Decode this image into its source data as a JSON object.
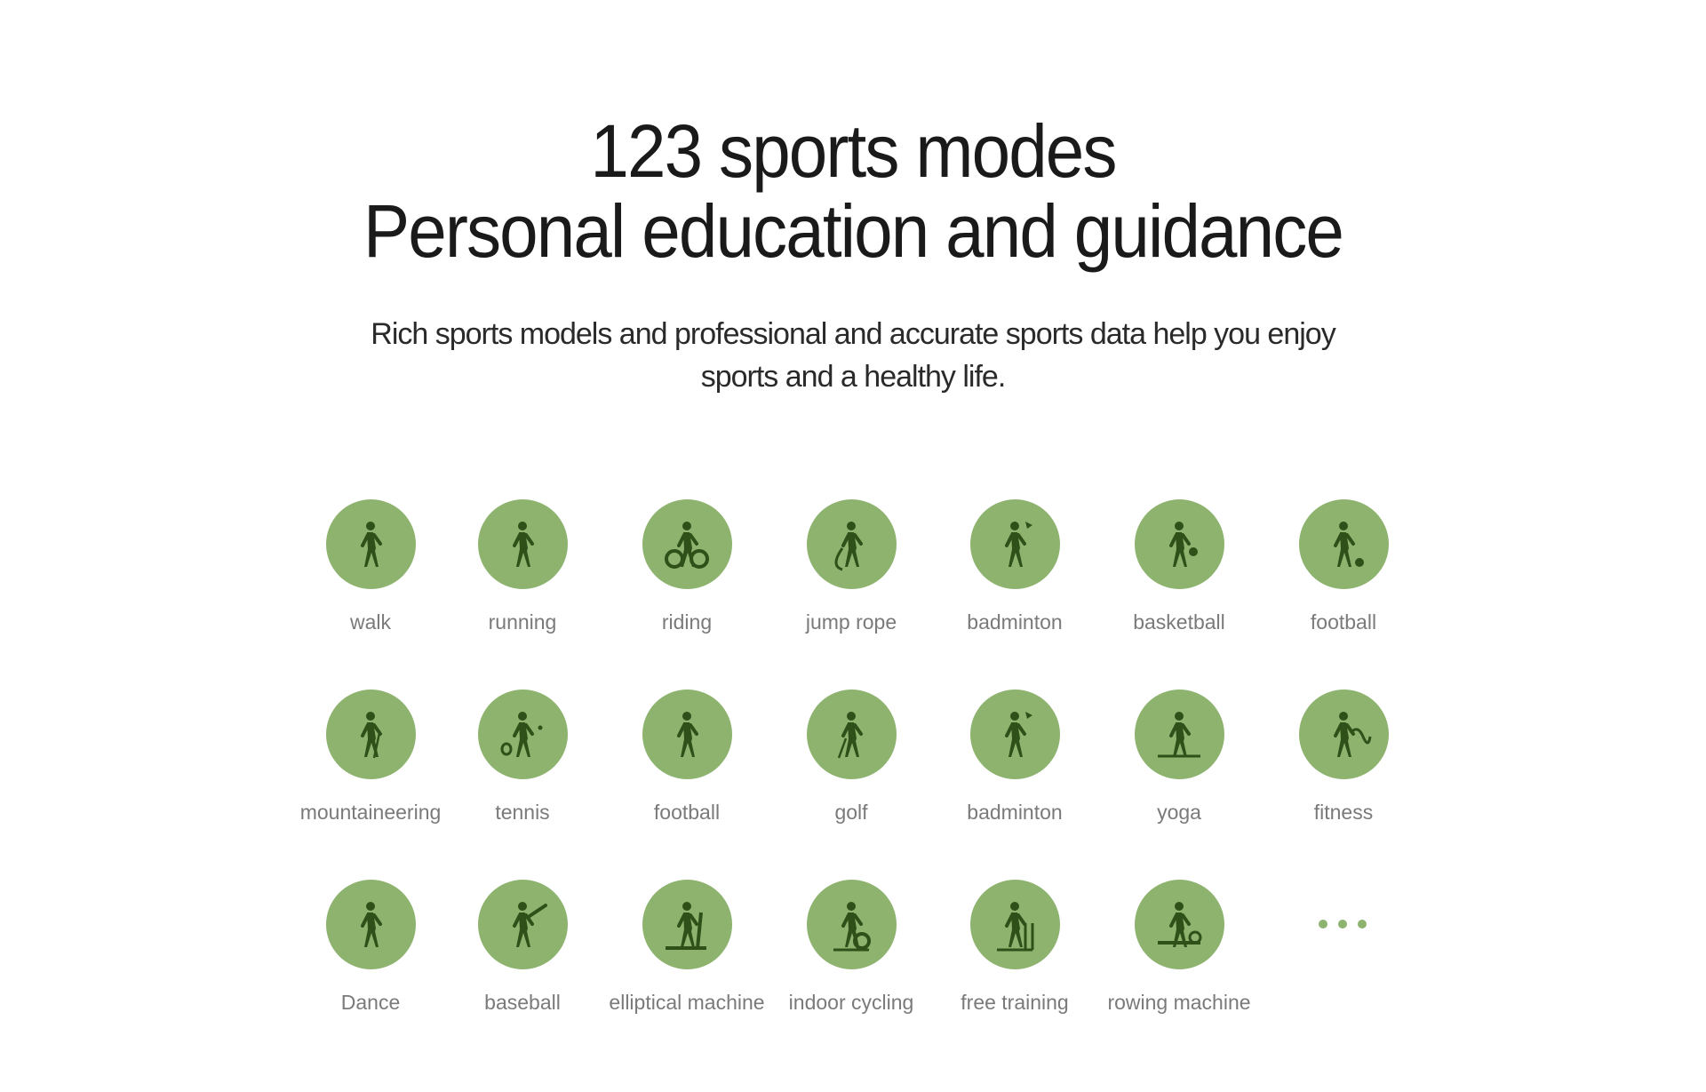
{
  "header": {
    "title_line1": "123 sports modes",
    "title_line2": "Personal education and guidance",
    "subtitle_line1": "Rich sports models and professional and accurate sports data help you enjoy",
    "subtitle_line2": "sports and a healthy life."
  },
  "colors": {
    "circle": "#8db36f",
    "icon": "#2f5119",
    "label": "#7a7a7a"
  },
  "sports": [
    {
      "label": "walk",
      "icon": "walk-icon"
    },
    {
      "label": "running",
      "icon": "running-icon"
    },
    {
      "label": "riding",
      "icon": "cycling-icon"
    },
    {
      "label": "jump rope",
      "icon": "jump-rope-icon"
    },
    {
      "label": "badminton",
      "icon": "badminton-icon"
    },
    {
      "label": "basketball",
      "icon": "basketball-icon"
    },
    {
      "label": "football",
      "icon": "football-icon"
    },
    {
      "label": "mountaineering",
      "icon": "mountaineering-icon"
    },
    {
      "label": "tennis",
      "icon": "tennis-icon"
    },
    {
      "label": "football",
      "icon": "american-football-icon"
    },
    {
      "label": "golf",
      "icon": "golf-icon"
    },
    {
      "label": "badminton",
      "icon": "badminton-icon"
    },
    {
      "label": "yoga",
      "icon": "yoga-icon"
    },
    {
      "label": "fitness",
      "icon": "battle-rope-icon"
    },
    {
      "label": "Dance",
      "icon": "dance-icon"
    },
    {
      "label": "baseball",
      "icon": "baseball-icon"
    },
    {
      "label": "elliptical machine",
      "icon": "elliptical-machine-icon"
    },
    {
      "label": "indoor cycling",
      "icon": "indoor-cycling-icon"
    },
    {
      "label": "free training",
      "icon": "free-training-icon"
    },
    {
      "label": "rowing machine",
      "icon": "rowing-machine-icon"
    }
  ],
  "more_icon": "ellipsis-icon"
}
